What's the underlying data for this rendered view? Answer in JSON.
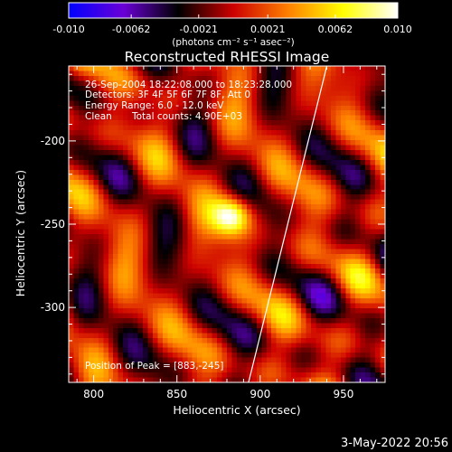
{
  "title": "Reconstructed RHESSI Image",
  "colorbar": {
    "ticks": [
      "-0.010",
      "-0.0062",
      "-0.0021",
      "0.0021",
      "0.0062",
      "0.010"
    ],
    "tick_values": [
      -0.01,
      -0.0062,
      -0.0021,
      0.0021,
      0.0062,
      0.01
    ],
    "range": [
      -0.01,
      0.01
    ],
    "units_label": "(photons cm⁻² s⁻¹ asec⁻²)",
    "colormap": [
      "#0000ff",
      "#6a00d6",
      "#000000",
      "#cc0000",
      "#ff8000",
      "#ffff00",
      "#ffffff"
    ]
  },
  "info": {
    "time": "26-Sep-2004 18:22:08.000 to 18:23:28.000",
    "detectors": "Detectors: 3F 4F 5F 6F 7F 8F, Att 0",
    "energy": "Energy Range: 6.0 - 12.0 keV",
    "clean": "Clean",
    "counts": "Total counts: 4.90E+03",
    "peak": "Position of Peak = [883,-245]"
  },
  "footer": {
    "date": "3-May-2022 20:56"
  },
  "chart_data": {
    "type": "heatmap",
    "title": "Reconstructed RHESSI Image",
    "xlabel": "Heliocentric X (arcsec)",
    "ylabel": "Heliocentric Y (arcsec)",
    "xlim": [
      785,
      975
    ],
    "ylim": [
      -345,
      -155
    ],
    "xticks": [
      "800",
      "850",
      "900",
      "950"
    ],
    "xtick_values": [
      800,
      850,
      900,
      950
    ],
    "yticks": [
      "-200",
      "-250",
      "-300"
    ],
    "ytick_values": [
      -200,
      -250,
      -300
    ],
    "peak": {
      "x": 883,
      "y": -245
    },
    "limb_line": [
      [
        893,
        -345
      ],
      [
        940,
        -155
      ]
    ],
    "limb_color": "#ffffff"
  }
}
